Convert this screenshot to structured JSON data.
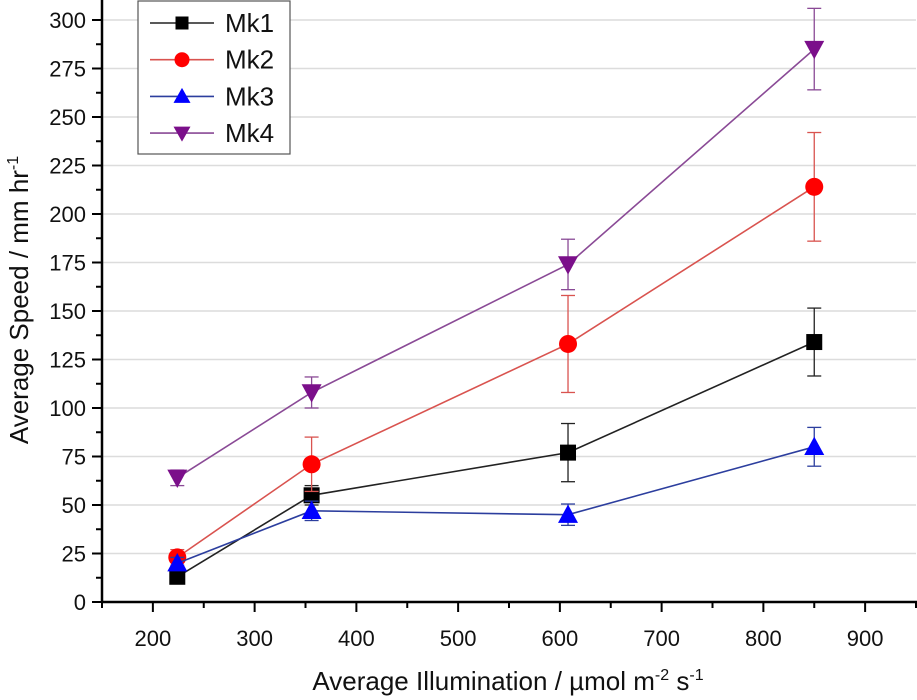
{
  "chart_data": {
    "type": "line",
    "title": "",
    "xlabel": "Average Illumination / µmol m-2 s-1",
    "xlabel_parts": {
      "base": "Average Illumination / µmol m",
      "sup1": "-2",
      "mid": " s",
      "sup2": "-1"
    },
    "ylabel": "Average Speed / mm hr-1",
    "ylabel_parts": {
      "base": "Average Speed / mm hr",
      "sup": "-1"
    },
    "xlim": [
      150,
      950
    ],
    "ylim": [
      0,
      300
    ],
    "x_ticks": [
      200,
      300,
      400,
      500,
      600,
      700,
      800,
      900
    ],
    "x_minor_ticks": [
      150,
      250,
      350,
      450,
      550,
      650,
      750,
      850,
      950
    ],
    "y_ticks": [
      0,
      25,
      50,
      75,
      100,
      125,
      150,
      175,
      200,
      225,
      250,
      275,
      300
    ],
    "y_minor_step": 12.5,
    "grid": "horizontal",
    "legend_position": "top-left",
    "x": [
      224,
      356,
      608,
      850
    ],
    "series": [
      {
        "name": "Mk1",
        "color": "#000000",
        "line_color": "#222222",
        "marker": "square",
        "values": [
          13,
          55,
          77,
          134
        ],
        "errors": [
          3,
          5,
          15,
          17.5
        ]
      },
      {
        "name": "Mk2",
        "color": "#ff0000",
        "line_color": "#d9534f",
        "marker": "circle",
        "values": [
          23,
          71,
          133,
          214
        ],
        "errors": [
          4,
          14,
          25,
          28
        ]
      },
      {
        "name": "Mk3",
        "color": "#0000ff",
        "line_color": "#2c3e9e",
        "marker": "triangle-up",
        "values": [
          20,
          47,
          45,
          80
        ],
        "errors": [
          3,
          5,
          5.5,
          10
        ]
      },
      {
        "name": "Mk4",
        "color": "#7b0f8a",
        "line_color": "#8a4a96",
        "marker": "triangle-down",
        "values": [
          64,
          108,
          174,
          285
        ],
        "errors": [
          4,
          8,
          13,
          21
        ]
      }
    ]
  }
}
